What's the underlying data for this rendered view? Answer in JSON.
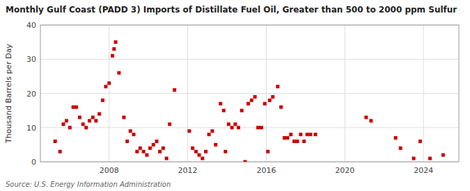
{
  "chart_data": {
    "type": "scatter",
    "title": "Monthly Gulf Coast (PADD 3) Imports of Distillate Fuel Oil, Greater than 500 to 2000 ppm Sulfur",
    "y_label": "Thousand Barrels per Day",
    "source": "Source: U.S. Energy Information Administration",
    "color": "#cc0000",
    "marker": "square",
    "grid": true,
    "xlim": [
      2004.5,
      2025.8
    ],
    "xticks": [
      2008,
      2012,
      2016,
      2020,
      2024
    ],
    "ylim": [
      0,
      40
    ],
    "yticks": [
      0,
      10,
      20,
      30,
      40
    ],
    "x": [
      2005.25,
      2005.5,
      2005.67,
      2005.83,
      2006.0,
      2006.17,
      2006.33,
      2006.5,
      2006.67,
      2006.83,
      2007.0,
      2007.17,
      2007.33,
      2007.5,
      2007.67,
      2007.83,
      2008.0,
      2008.17,
      2008.25,
      2008.33,
      2008.5,
      2008.75,
      2008.92,
      2009.08,
      2009.25,
      2009.42,
      2009.58,
      2009.75,
      2009.92,
      2010.08,
      2010.25,
      2010.42,
      2010.58,
      2010.75,
      2010.92,
      2011.08,
      2011.33,
      2012.08,
      2012.25,
      2012.42,
      2012.58,
      2012.75,
      2012.92,
      2013.08,
      2013.25,
      2013.42,
      2013.67,
      2013.83,
      2013.92,
      2014.08,
      2014.25,
      2014.42,
      2014.58,
      2014.75,
      2014.92,
      2015.08,
      2015.25,
      2015.42,
      2015.58,
      2015.75,
      2015.92,
      2016.08,
      2016.17,
      2016.33,
      2016.58,
      2016.75,
      2016.92,
      2017.08,
      2017.25,
      2017.42,
      2017.58,
      2017.75,
      2017.92,
      2018.08,
      2018.25,
      2018.5,
      2021.08,
      2021.33,
      2022.58,
      2022.83,
      2023.5,
      2023.83,
      2024.33,
      2025.0
    ],
    "values": [
      6,
      3,
      11,
      12,
      10,
      16,
      16,
      13,
      11,
      10,
      12,
      13,
      12,
      14,
      18,
      22,
      23,
      31,
      33,
      35,
      26,
      13,
      6,
      9,
      8,
      3,
      4,
      3,
      2,
      4,
      5,
      6,
      3,
      4,
      1,
      11,
      21,
      9,
      4,
      3,
      2,
      1,
      3,
      8,
      9,
      5,
      17,
      15,
      3,
      11,
      10,
      11,
      10,
      15,
      0,
      17,
      18,
      19,
      10,
      10,
      17,
      3,
      18,
      19,
      22,
      16,
      7,
      7,
      8,
      6,
      6,
      8,
      6,
      8,
      8,
      8,
      13,
      12,
      7,
      4,
      1,
      6,
      1,
      2
    ]
  }
}
